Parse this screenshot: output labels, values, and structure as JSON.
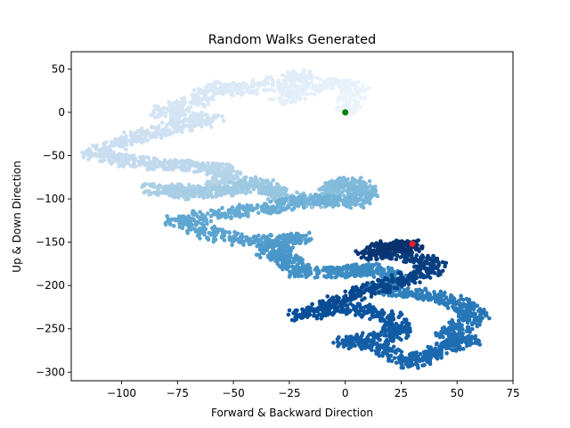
{
  "chart_data": {
    "type": "scatter",
    "title": "Random Walks Generated",
    "xlabel": "Forward & Backward Direction",
    "ylabel": "Up & Down Direction",
    "xlim": [
      -122.5,
      75
    ],
    "ylim": [
      -310,
      70
    ],
    "xticks": [
      -100,
      -75,
      -50,
      -25,
      0,
      25,
      50,
      75
    ],
    "yticks": [
      -300,
      -250,
      -200,
      -150,
      -100,
      -50,
      0,
      50
    ],
    "colormap": "Blues",
    "grid": false,
    "legend": "none",
    "start_point": {
      "x": 0,
      "y": 0,
      "color": "#008000"
    },
    "end_point": {
      "x": 30,
      "y": -152,
      "color": "#e8202a"
    },
    "path_waypoints": [
      [
        0,
        0
      ],
      [
        5,
        28
      ],
      [
        -10,
        35
      ],
      [
        -28,
        15
      ],
      [
        -20,
        45
      ],
      [
        -45,
        25
      ],
      [
        -55,
        30
      ],
      [
        -68,
        12
      ],
      [
        -82,
        0
      ],
      [
        -60,
        -8
      ],
      [
        -78,
        -18
      ],
      [
        -95,
        -30
      ],
      [
        -112,
        -48
      ],
      [
        -100,
        -55
      ],
      [
        -85,
        -60
      ],
      [
        -70,
        -62
      ],
      [
        -58,
        -65
      ],
      [
        -52,
        -75
      ],
      [
        -62,
        -90
      ],
      [
        -85,
        -88
      ],
      [
        -70,
        -95
      ],
      [
        -50,
        -90
      ],
      [
        -40,
        -80
      ],
      [
        -30,
        -95
      ],
      [
        -15,
        -105
      ],
      [
        -5,
        -90
      ],
      [
        0,
        -80
      ],
      [
        10,
        -90
      ],
      [
        5,
        -105
      ],
      [
        -15,
        -100
      ],
      [
        -30,
        -110
      ],
      [
        -50,
        -115
      ],
      [
        -75,
        -125
      ],
      [
        -60,
        -140
      ],
      [
        -40,
        -150
      ],
      [
        -20,
        -145
      ],
      [
        -35,
        -160
      ],
      [
        -25,
        -170
      ],
      [
        -20,
        -185
      ],
      [
        0,
        -185
      ],
      [
        10,
        -180
      ],
      [
        25,
        -190
      ],
      [
        15,
        -205
      ],
      [
        35,
        -210
      ],
      [
        50,
        -220
      ],
      [
        60,
        -235
      ],
      [
        45,
        -255
      ],
      [
        55,
        -265
      ],
      [
        40,
        -275
      ],
      [
        30,
        -290
      ],
      [
        15,
        -270
      ],
      [
        0,
        -265
      ],
      [
        25,
        -255
      ],
      [
        20,
        -235
      ],
      [
        0,
        -225
      ],
      [
        -20,
        -235
      ],
      [
        -5,
        -220
      ],
      [
        10,
        -205
      ],
      [
        25,
        -195
      ],
      [
        40,
        -180
      ],
      [
        30,
        -165
      ],
      [
        10,
        -165
      ],
      [
        20,
        -155
      ],
      [
        30,
        -152
      ]
    ]
  }
}
